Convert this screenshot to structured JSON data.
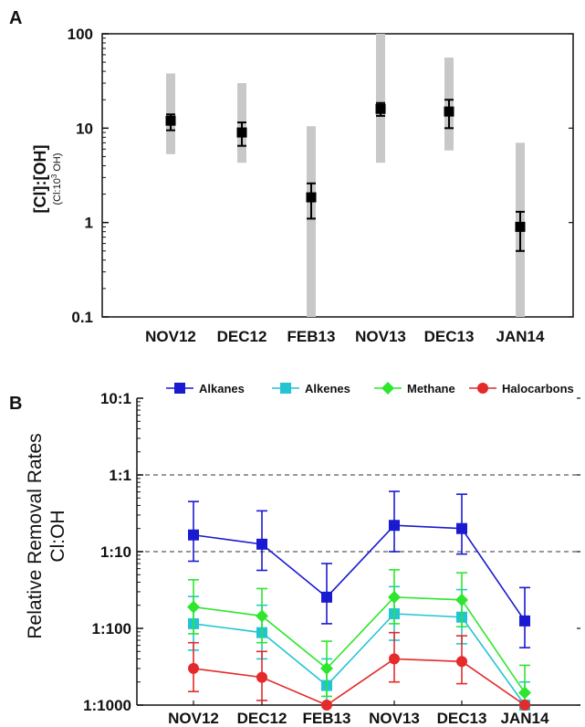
{
  "chart_data": [
    {
      "panel_label": "A",
      "type": "scatter",
      "yscale": "log",
      "ylim": [
        0.1,
        100
      ],
      "ylabel": "[Cl]:[OH]",
      "ylabel_sub": "(Cl:10",
      "ylabel_sub_sup": "3",
      "ylabel_sub_end": " OH)",
      "ytick_labels": [
        "100",
        "10",
        "1",
        "0.1"
      ],
      "ytick_values": [
        100,
        10,
        1,
        0.1
      ],
      "categories": [
        "NOV12",
        "DEC12",
        "FEB13",
        "NOV13",
        "DEC13",
        "JAN14"
      ],
      "series": [
        {
          "values": [
            12,
            9,
            1.85,
            16,
            15,
            0.9
          ],
          "err_low": [
            9.5,
            6.5,
            1.1,
            13.5,
            10,
            0.5
          ],
          "err_high": [
            14,
            11.5,
            2.6,
            18.5,
            20,
            1.3
          ],
          "range_low": [
            5.3,
            4.3,
            0,
            4.3,
            5.8,
            0
          ],
          "range_high": [
            38,
            30,
            10.5,
            105,
            56,
            7
          ]
        }
      ],
      "colors": {
        "marker": "#000000",
        "range": "#c8c8c8"
      }
    },
    {
      "panel_label": "B",
      "type": "line",
      "yscale": "log",
      "ylim": [
        0.001,
        10
      ],
      "ylabel": "Relative Removal Rates",
      "ylabel2": "Cl:OH",
      "ytick_labels": [
        "10:1",
        "1:1",
        "1:10",
        "1:100",
        "1:1000"
      ],
      "ytick_values": [
        10,
        1,
        0.1,
        0.01,
        0.001
      ],
      "reference_lines": [
        1,
        0.1
      ],
      "categories": [
        "NOV12",
        "DEC12",
        "FEB13",
        "NOV13",
        "DEC13",
        "JAN14"
      ],
      "legend_position": "top",
      "series": [
        {
          "name": "Alkanes",
          "color": "#1a1ad0",
          "marker": "square",
          "values": [
            0.165,
            0.125,
            0.0255,
            0.22,
            0.2,
            0.0125
          ],
          "err_low": [
            0.075,
            0.057,
            0.0115,
            0.1,
            0.093,
            0.0056
          ],
          "err_high": [
            0.45,
            0.34,
            0.07,
            0.61,
            0.56,
            0.034
          ]
        },
        {
          "name": "Alkenes",
          "color": "#22c4d4",
          "marker": "square",
          "values": [
            0.0115,
            0.0088,
            0.0018,
            0.0155,
            0.014,
            0.00087
          ],
          "err_low": [
            0.0052,
            0.004,
            0.0008,
            0.007,
            0.0063,
            0.0004
          ],
          "err_high": [
            0.026,
            0.02,
            0.004,
            0.035,
            0.032,
            0.002
          ]
        },
        {
          "name": "Methane",
          "color": "#2ee62e",
          "marker": "diamond",
          "values": [
            0.019,
            0.0145,
            0.003,
            0.0255,
            0.0235,
            0.00145
          ],
          "err_low": [
            0.0085,
            0.0065,
            0.0013,
            0.0115,
            0.0105,
            0.00065
          ],
          "err_high": [
            0.043,
            0.033,
            0.0068,
            0.058,
            0.053,
            0.0033
          ]
        },
        {
          "name": "Halocarbons",
          "color": "#e42a2a",
          "marker": "circle",
          "values": [
            0.003,
            0.0023,
            0.00046,
            0.004,
            0.0037,
            0.00023
          ],
          "err_low": [
            0.0015,
            0.00115,
            0.00024,
            0.002,
            0.0019,
            0.00012
          ],
          "err_high": [
            0.0065,
            0.005,
            0.001,
            0.0088,
            0.008,
            0.0005
          ]
        }
      ]
    }
  ]
}
